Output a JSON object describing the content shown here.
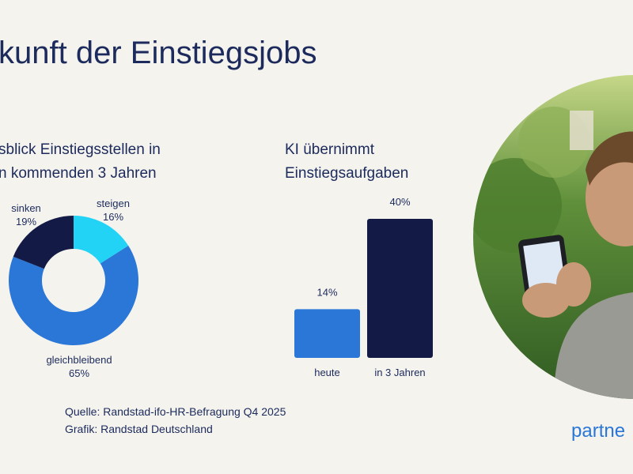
{
  "title": "kunft der Einstiegsjobs",
  "chart_data": [
    {
      "type": "donut",
      "title": [
        "sblick Einstiegsstellen in",
        "n kommenden 3 Jahren"
      ],
      "categories": [
        "steigen",
        "gleichbleibend",
        "sinken"
      ],
      "values": [
        16,
        65,
        19
      ],
      "value_labels": [
        "16%",
        "65%",
        "19%"
      ],
      "colors": [
        "#22d3f5",
        "#2a77d8",
        "#121a45"
      ]
    },
    {
      "type": "bar",
      "title": [
        "KI übernimmt",
        "Einstiegsaufgaben"
      ],
      "categories": [
        "heute",
        "in 3 Jahren"
      ],
      "values": [
        14,
        40
      ],
      "value_labels": [
        "14%",
        "40%"
      ],
      "colors": [
        "#2a77d8",
        "#121a45"
      ]
    }
  ],
  "source": [
    "Quelle: Randstad-ifo-HR-Befragung Q4 2025",
    "Grafik: Randstad Deutschland"
  ],
  "logo": "partne"
}
